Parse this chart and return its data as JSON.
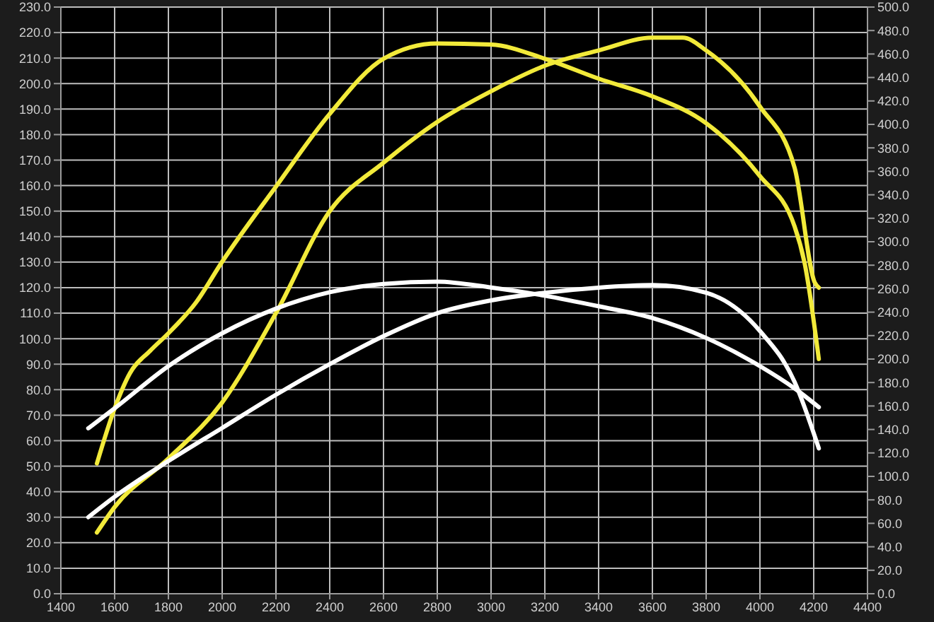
{
  "chart_data": {
    "type": "line",
    "xlim": [
      1400,
      4400
    ],
    "xticks": [
      1400,
      1600,
      1800,
      2000,
      2200,
      2400,
      2600,
      2800,
      3000,
      3200,
      3400,
      3600,
      3800,
      4000,
      4200,
      4400
    ],
    "ylim": [
      0,
      230
    ],
    "yticks": [
      {
        "value": 0,
        "label": "0.0"
      },
      {
        "value": 10,
        "label": "10.0"
      },
      {
        "value": 20,
        "label": "20.0"
      },
      {
        "value": 30,
        "label": "30.0"
      },
      {
        "value": 40,
        "label": "40.0"
      },
      {
        "value": 50,
        "label": "50.0"
      },
      {
        "value": 60,
        "label": "60.0"
      },
      {
        "value": 70,
        "label": "70.0"
      },
      {
        "value": 80,
        "label": "80.0"
      },
      {
        "value": 90,
        "label": "90.0"
      },
      {
        "value": 100,
        "label": "100.0"
      },
      {
        "value": 110,
        "label": "110.0"
      },
      {
        "value": 120,
        "label": "120.0"
      },
      {
        "value": 130,
        "label": "130.0"
      },
      {
        "value": 140,
        "label": "140.0"
      },
      {
        "value": 150,
        "label": "150.0"
      },
      {
        "value": 160,
        "label": "160.0"
      },
      {
        "value": 170,
        "label": "170.0"
      },
      {
        "value": 180,
        "label": "180.0"
      },
      {
        "value": 190,
        "label": "190.0"
      },
      {
        "value": 200,
        "label": "200.0"
      },
      {
        "value": 210,
        "label": "210.0"
      },
      {
        "value": 220,
        "label": "220.0"
      },
      {
        "value": 230,
        "label": "230.0"
      }
    ],
    "y2lim": [
      0,
      500
    ],
    "y2ticks": [
      {
        "value": 0,
        "label": "0.0"
      },
      {
        "value": 20,
        "label": "20.0"
      },
      {
        "value": 40,
        "label": "40.0"
      },
      {
        "value": 60,
        "label": "60.0"
      },
      {
        "value": 80,
        "label": "80.0"
      },
      {
        "value": 100,
        "label": "100.0"
      },
      {
        "value": 120,
        "label": "120.0"
      },
      {
        "value": 140,
        "label": "140.0"
      },
      {
        "value": 160,
        "label": "160.0"
      },
      {
        "value": 180,
        "label": "180.0"
      },
      {
        "value": 200,
        "label": "200.0"
      },
      {
        "value": 220,
        "label": "220.0"
      },
      {
        "value": 240,
        "label": "240.0"
      },
      {
        "value": 260,
        "label": "260.0"
      },
      {
        "value": 280,
        "label": "280.0"
      },
      {
        "value": 300,
        "label": "300.0"
      },
      {
        "value": 320,
        "label": "320.0"
      },
      {
        "value": 340,
        "label": "340.0"
      },
      {
        "value": 360,
        "label": "360.0"
      },
      {
        "value": 380,
        "label": "380.0"
      },
      {
        "value": 400,
        "label": "400.0"
      },
      {
        "value": 420,
        "label": "420.0"
      },
      {
        "value": 440,
        "label": "440.0"
      },
      {
        "value": 460,
        "label": "460.0"
      },
      {
        "value": 480,
        "label": "480.0"
      },
      {
        "value": 500,
        "label": "500.0"
      }
    ],
    "grid": true,
    "marker": "none",
    "line_style": "solid",
    "series": [
      {
        "color": "#f2ea3a",
        "axis": "y2",
        "x": [
          1534,
          1600,
          1657,
          1732,
          1800,
          1902,
          2000,
          2200,
          2400,
          2600,
          2800,
          3000,
          3200,
          3400,
          3600,
          3800,
          4000,
          4129,
          4166,
          4219
        ],
        "values": [
          111,
          158,
          188,
          207,
          222,
          248,
          283,
          347,
          409,
          456,
          469,
          468,
          456,
          439,
          424,
          401,
          356,
          313,
          282,
          200
        ]
      },
      {
        "color": "#f2ea3a",
        "x": [
          1534,
          1600,
          1800,
          2000,
          2200,
          2400,
          2600,
          2800,
          3000,
          3200,
          3400,
          3600,
          3713,
          3800,
          4000,
          4129,
          4204,
          4219
        ],
        "values": [
          24,
          34,
          53,
          75,
          110,
          150,
          169,
          185,
          197,
          207,
          213,
          218,
          218,
          213,
          191,
          167,
          122,
          120
        ]
      },
      {
        "color": "#ffffff",
        "axis": "y2",
        "x": [
          1502,
          1600,
          1800,
          2000,
          2200,
          2400,
          2600,
          2800,
          3000,
          3200,
          3400,
          3600,
          3800,
          4000,
          4129,
          4219
        ],
        "values": [
          141,
          158,
          194,
          222,
          243,
          257,
          264,
          266,
          261,
          254,
          245,
          235,
          218,
          194,
          175,
          159
        ]
      },
      {
        "color": "#ffffff",
        "x": [
          1502,
          1600,
          1800,
          2000,
          2200,
          2400,
          2600,
          2800,
          3000,
          3200,
          3400,
          3600,
          3800,
          4000,
          4129,
          4219
        ],
        "values": [
          30,
          38,
          52,
          65,
          78,
          90,
          101,
          110,
          115,
          118,
          120,
          121,
          118,
          103,
          83,
          57
        ]
      }
    ]
  }
}
